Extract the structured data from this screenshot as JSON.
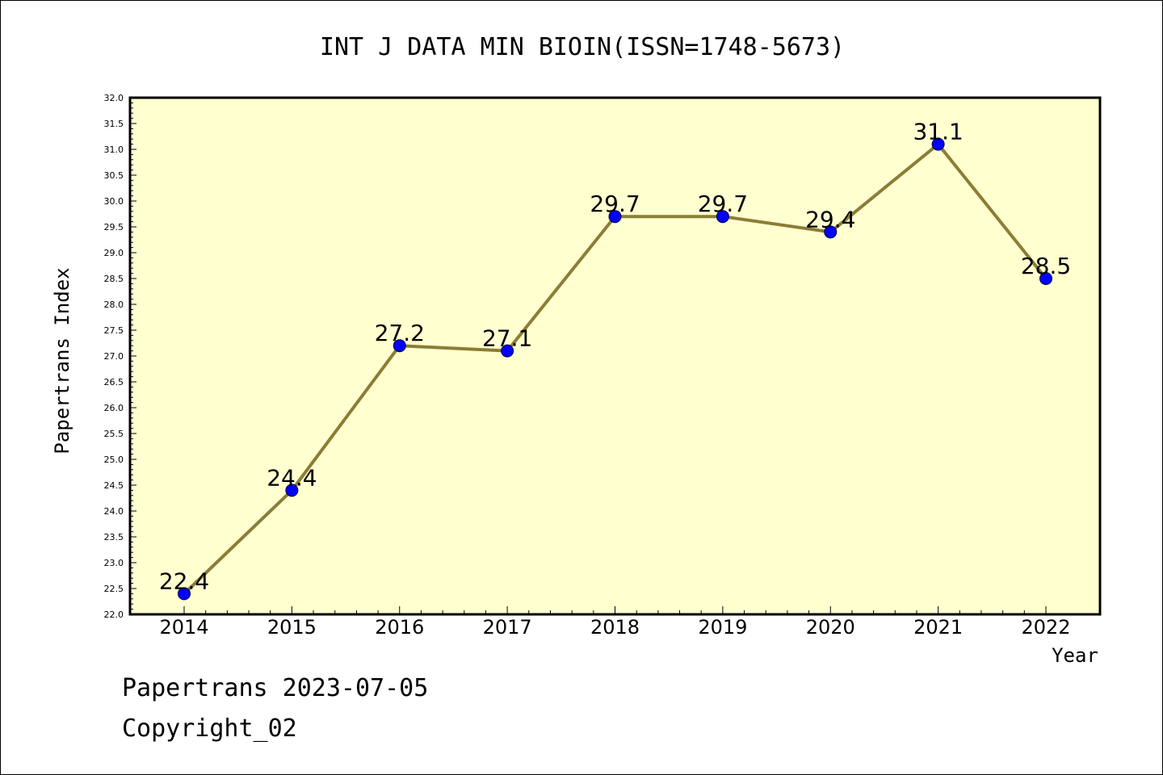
{
  "chart_data": {
    "type": "line",
    "title": "INT J DATA MIN BIOIN(ISSN=1748-5673)",
    "xlabel": "Year",
    "ylabel": "Papertrans Index",
    "categories": [
      "2014",
      "2015",
      "2016",
      "2017",
      "2018",
      "2019",
      "2020",
      "2021",
      "2022"
    ],
    "series": [
      {
        "values": [
          22.4,
          24.4,
          27.2,
          27.1,
          29.7,
          29.7,
          29.4,
          31.1,
          28.5
        ]
      }
    ],
    "data_labels": [
      "22.4",
      "24.4",
      "27.2",
      "27.1",
      "29.7",
      "29.7",
      "29.4",
      "31.1",
      "28.5"
    ],
    "ylim": [
      22.0,
      32.0
    ],
    "yticks": [
      "22.0",
      "22.5",
      "23.0",
      "23.5",
      "24.0",
      "24.5",
      "25.0",
      "25.5",
      "26.0",
      "26.5",
      "27.0",
      "27.5",
      "28.0",
      "28.5",
      "29.0",
      "29.5",
      "30.0",
      "30.5",
      "31.0",
      "31.5",
      "32.0"
    ],
    "grid": false,
    "colors": {
      "plot_background": "#ffffd0",
      "line": "#8b7d35",
      "marker": "#0000ff"
    }
  },
  "footer": {
    "line1": "Papertrans 2023-07-05",
    "line2": "Copyright_02"
  }
}
